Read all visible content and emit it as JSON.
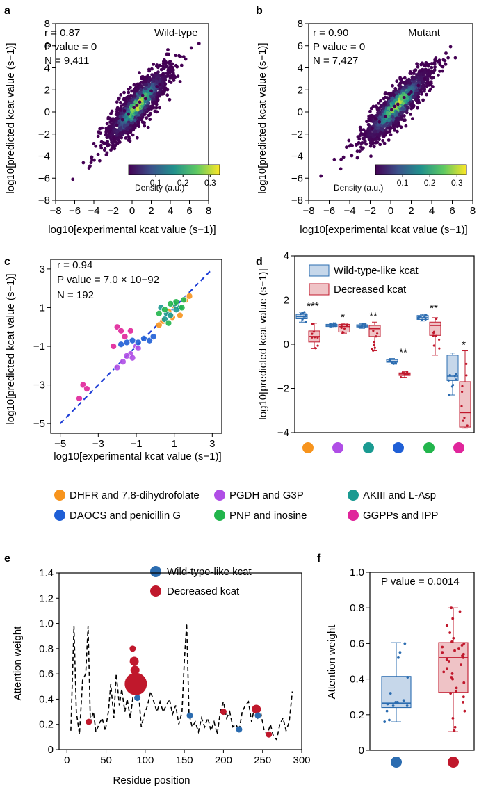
{
  "panels": {
    "a": {
      "letter": "a",
      "annotation_lines": [
        "r = 0.87",
        "P value = 0",
        "N = 9,411"
      ],
      "label": "Wild-type",
      "xlabel": "log10[experimental kcat value (s−1)]",
      "ylabel": "log10[predicted kcat value (s−1)]",
      "x_ticks": [
        "−8",
        "−6",
        "−4",
        "−2",
        "0",
        "2",
        "4",
        "6",
        "8"
      ],
      "y_ticks": [
        "−8",
        "−6",
        "−4",
        "−2",
        "0",
        "2",
        "4",
        "6",
        "8"
      ],
      "colorbar_label": "Density (a.u.)",
      "colorbar_ticks": [
        "0.1",
        "0.2",
        "0.3"
      ]
    },
    "b": {
      "letter": "b",
      "annotation_lines": [
        "r = 0.90",
        "P value = 0",
        "N = 7,427"
      ],
      "label": "Mutant",
      "xlabel": "log10[experimental kcat value (s−1)]",
      "ylabel": "log10[predicted kcat value (s−1)]",
      "x_ticks": [
        "−8",
        "−6",
        "−4",
        "−2",
        "0",
        "2",
        "4",
        "6",
        "8"
      ],
      "y_ticks": [
        "−8",
        "−6",
        "−4",
        "−2",
        "0",
        "2",
        "4",
        "6",
        "8"
      ],
      "colorbar_label": "Density (a.u.)",
      "colorbar_ticks": [
        "0.1",
        "0.2",
        "0.3"
      ]
    },
    "c": {
      "letter": "c",
      "annotation_lines": [
        "r = 0.94",
        "P value = 7.0 × 10−92",
        "N = 192"
      ],
      "xlabel": "log10[experimental kcat value (s−1)]",
      "ylabel": "log10[predicted kcat value (s−1)]",
      "x_ticks": [
        "−5",
        "−3",
        "−1",
        "1",
        "3"
      ],
      "y_ticks": [
        "−5",
        "−3",
        "−1",
        "1",
        "3"
      ]
    },
    "d": {
      "letter": "d",
      "ylabel": "log10[predicted kcat value (s−1)]",
      "y_ticks": [
        "−4",
        "−2",
        "0",
        "2",
        "4"
      ],
      "legend": [
        "Wild-type-like kcat",
        "Decreased kcat"
      ],
      "significance": [
        "***",
        "*",
        "**",
        "**",
        "**",
        "*"
      ]
    },
    "e": {
      "letter": "e",
      "xlabel": "Residue position",
      "ylabel": "Attention weight",
      "x_ticks": [
        "0",
        "50",
        "100",
        "150",
        "200",
        "250",
        "300"
      ],
      "y_ticks": [
        "0",
        "0.2",
        "0.4",
        "0.6",
        "0.8",
        "1.0",
        "1.2",
        "1.4"
      ],
      "legend": [
        "Wild-type-like kcat",
        "Decreased kcat"
      ]
    },
    "f": {
      "letter": "f",
      "annotation": "P value = 0.0014",
      "ylabel": "Attention weight",
      "y_ticks": [
        "0",
        "0.2",
        "0.4",
        "0.6",
        "0.8",
        "1.0"
      ]
    }
  },
  "substrate_legend": [
    {
      "label": "DHFR and 7,8-dihydrofolate",
      "color": "#f7941d"
    },
    {
      "label": "PGDH and G3P",
      "color": "#b04ee6"
    },
    {
      "label": "AKIII and L-Asp",
      "color": "#1a9a91"
    },
    {
      "label": "DAOCS and penicillin G",
      "color": "#1f5fd6"
    },
    {
      "label": "PNP and inosine",
      "color": "#22b54c"
    },
    {
      "label": "GGPPs and IPP",
      "color": "#e0259b"
    }
  ],
  "colors": {
    "wild_type": "#2b6cb0",
    "decreased": "#c0182c",
    "wild_type_box": "#c6d7ea",
    "decreased_box": "#efc3c6",
    "regression_line": "#1f3fd6"
  },
  "chart_data": [
    {
      "panel": "a",
      "type": "scatter",
      "title": "Wild-type",
      "xlabel": "log10[experimental kcat value (s−1)]",
      "ylabel": "log10[predicted kcat value (s−1)]",
      "xlim": [
        -8,
        8
      ],
      "ylim": [
        -8,
        8
      ],
      "stats": {
        "r": 0.87,
        "p_value": 0,
        "n": 9411
      },
      "density_colorbar": {
        "label": "Density (a.u.)",
        "ticks": [
          0.1,
          0.2,
          0.3
        ]
      },
      "points_x": [
        -6.2,
        -5.1,
        -4.4,
        -3.8,
        -3.0,
        -2.4,
        -1.6,
        -1.0,
        -0.4,
        0.2,
        0.8,
        1.4,
        2.0,
        2.6,
        3.2,
        3.9,
        4.6,
        5.4,
        6.2,
        7.0,
        -0.8,
        0.5,
        1.1,
        -1.9,
        2.9
      ],
      "points_y": [
        -6.1,
        -4.6,
        -4.9,
        -3.1,
        -2.8,
        -1.8,
        -1.2,
        -0.7,
        -0.2,
        0.4,
        0.9,
        1.2,
        1.9,
        2.3,
        3.4,
        3.6,
        4.2,
        5.0,
        5.8,
        6.2,
        0.1,
        0.6,
        1.5,
        -2.3,
        2.5
      ]
    },
    {
      "panel": "b",
      "type": "scatter",
      "title": "Mutant",
      "xlabel": "log10[experimental kcat value (s−1)]",
      "ylabel": "log10[predicted kcat value (s−1)]",
      "xlim": [
        -8,
        8
      ],
      "ylim": [
        -8,
        8
      ],
      "stats": {
        "r": 0.9,
        "p_value": 0,
        "n": 7427
      },
      "density_colorbar": {
        "label": "Density (a.u.)",
        "ticks": [
          0.1,
          0.2,
          0.3
        ]
      },
      "points_x": [
        -6.8,
        -5.5,
        -4.6,
        -3.9,
        -3.2,
        -2.5,
        -1.8,
        -1.1,
        -0.5,
        0.1,
        0.7,
        1.3,
        2.0,
        2.7,
        3.3,
        4.0,
        4.8,
        5.6,
        6.3,
        -1.5,
        0.4,
        1.8
      ],
      "points_y": [
        -5.8,
        -4.3,
        -4.1,
        -3.0,
        -2.9,
        -2.0,
        -1.5,
        -0.9,
        -0.4,
        0.2,
        0.7,
        1.3,
        1.8,
        2.4,
        3.0,
        3.7,
        4.3,
        4.9,
        4.9,
        -0.6,
        0.5,
        1.6
      ]
    },
    {
      "panel": "c",
      "type": "scatter",
      "xlabel": "log10[experimental kcat value (s−1)]",
      "ylabel": "log10[predicted kcat value (s−1)]",
      "xlim": [
        -5.5,
        3.5
      ],
      "ylim": [
        -5.5,
        3.5
      ],
      "stats": {
        "r": 0.94,
        "p_value": "7.0 × 10−92",
        "n": 192
      },
      "series": [
        {
          "group": "DHFR and 7,8-dihydrofolate",
          "color": "#f7941d",
          "x": [
            0.4,
            0.7,
            1.0,
            1.3,
            1.6,
            0.2,
            0.9,
            1.8
          ],
          "y": [
            0.3,
            0.8,
            1.1,
            0.6,
            1.4,
            0.1,
            0.5,
            1.6
          ]
        },
        {
          "group": "PGDH and G3P",
          "color": "#b04ee6",
          "x": [
            -1.7,
            -1.3,
            -1.0,
            -1.5,
            -2.0,
            -0.9,
            -1.2
          ],
          "y": [
            -1.8,
            -1.4,
            -1.0,
            -1.5,
            -2.1,
            -1.1,
            -1.6
          ]
        },
        {
          "group": "AKIII and L-Asp",
          "color": "#1a9a91",
          "x": [
            0.3,
            0.6,
            1.0,
            1.3,
            0.8,
            0.5,
            1.1
          ],
          "y": [
            1.0,
            0.7,
            1.2,
            1.0,
            0.6,
            0.4,
            0.9
          ]
        },
        {
          "group": "DAOCS and penicillin G",
          "color": "#1f5fd6",
          "x": [
            -1.5,
            -1.2,
            -0.9,
            -0.6,
            -0.3,
            -0.1,
            -1.8
          ],
          "y": [
            -0.8,
            -0.7,
            -0.8,
            -0.6,
            -0.7,
            -0.5,
            -0.9
          ]
        },
        {
          "group": "PNP and inosine",
          "color": "#22b54c",
          "x": [
            0.5,
            0.8,
            1.1,
            1.4,
            0.2,
            1.5,
            0.7
          ],
          "y": [
            0.9,
            1.2,
            1.3,
            1.0,
            0.7,
            1.4,
            0.2
          ]
        },
        {
          "group": "GGPPs and IPP",
          "color": "#e0259b",
          "x": [
            -3.8,
            -3.6,
            -4.0,
            -2.0,
            -1.8,
            -1.6,
            -2.2,
            -1.3
          ],
          "y": [
            -3.0,
            -3.2,
            -3.7,
            0.0,
            -0.2,
            -0.5,
            -1.0,
            -0.2
          ]
        }
      ],
      "regression_line": {
        "x": [
          -5,
          3
        ],
        "y": [
          -5,
          3
        ]
      }
    },
    {
      "panel": "d",
      "type": "box",
      "ylabel": "log10[predicted kcat value (s−1)]",
      "ylim": [
        -4,
        4
      ],
      "groups": [
        "DHFR and 7,8-dihydrofolate",
        "PGDH and G3P",
        "AKIII and L-Asp",
        "DAOCS and penicillin G",
        "PNP and inosine",
        "GGPPs and IPP"
      ],
      "series": [
        {
          "name": "Wild-type-like kcat",
          "q1": [
            1.15,
            0.8,
            0.78,
            -0.82,
            1.12,
            -1.65
          ],
          "median": [
            1.25,
            0.85,
            0.82,
            -0.78,
            1.2,
            -1.45
          ],
          "q3": [
            1.35,
            0.9,
            0.88,
            -0.7,
            1.3,
            -0.5
          ],
          "whisker_low": [
            1.0,
            0.75,
            0.72,
            -0.9,
            1.05,
            -2.3
          ],
          "whisker_high": [
            1.45,
            0.95,
            0.92,
            -0.65,
            1.35,
            -0.4
          ]
        },
        {
          "name": "Decreased kcat",
          "q1": [
            0.1,
            0.55,
            0.35,
            -1.42,
            0.4,
            -3.75
          ],
          "median": [
            0.35,
            0.8,
            0.7,
            -1.35,
            0.85,
            -3.1
          ],
          "q3": [
            0.6,
            0.9,
            0.85,
            -1.3,
            1.0,
            -1.7
          ],
          "whisker_low": [
            -0.2,
            0.5,
            -0.3,
            -1.5,
            -0.5,
            -3.8
          ],
          "whisker_high": [
            0.95,
            0.95,
            1.0,
            -1.25,
            1.2,
            -0.3
          ]
        }
      ],
      "significance": [
        "***",
        "*",
        "**",
        "**",
        "**",
        "*"
      ]
    },
    {
      "panel": "e",
      "type": "line",
      "xlabel": "Residue position",
      "ylabel": "Attention weight",
      "xlim": [
        -10,
        300
      ],
      "ylim": [
        0,
        1.4
      ],
      "line": {
        "x": [
          5,
          9,
          12,
          16,
          20,
          24,
          27,
          30,
          34,
          37,
          41,
          45,
          49,
          53,
          56,
          60,
          63,
          67,
          70,
          74,
          77,
          81,
          85,
          88,
          92,
          95,
          99,
          103,
          107,
          111,
          115,
          119,
          123,
          127,
          131,
          135,
          139,
          143,
          147,
          150,
          153,
          156,
          160,
          164,
          168,
          172,
          176,
          180,
          184,
          188,
          192,
          196,
          200,
          204,
          208,
          212,
          216,
          220,
          224,
          228,
          232,
          236,
          240,
          244,
          248,
          252,
          256,
          260,
          264,
          268,
          272,
          276,
          280,
          284,
          288
        ],
        "y": [
          0.15,
          0.98,
          0.3,
          0.12,
          0.55,
          0.6,
          0.98,
          0.22,
          0.3,
          0.14,
          0.2,
          0.25,
          0.15,
          0.3,
          0.52,
          0.25,
          0.6,
          0.35,
          0.48,
          0.3,
          0.4,
          0.25,
          0.45,
          0.65,
          0.42,
          0.18,
          0.28,
          0.35,
          0.46,
          0.38,
          0.3,
          0.38,
          0.3,
          0.35,
          0.4,
          0.28,
          0.35,
          0.2,
          0.3,
          0.7,
          1.0,
          0.28,
          0.18,
          0.22,
          0.14,
          0.25,
          0.18,
          0.25,
          0.15,
          0.22,
          0.12,
          0.3,
          0.38,
          0.25,
          0.3,
          0.18,
          0.2,
          0.15,
          0.3,
          0.35,
          0.38,
          0.22,
          0.35,
          0.25,
          0.28,
          0.15,
          0.12,
          0.2,
          0.1,
          0.08,
          0.2,
          0.25,
          0.15,
          0.22,
          0.46
        ]
      },
      "points": [
        {
          "series": "Decreased kcat",
          "x": 28,
          "y": 0.22,
          "size": "small"
        },
        {
          "series": "Decreased kcat",
          "x": 84,
          "y": 0.8,
          "size": "small"
        },
        {
          "series": "Decreased kcat",
          "x": 86,
          "y": 0.7,
          "size": "medium"
        },
        {
          "series": "Decreased kcat",
          "x": 87,
          "y": 0.63,
          "size": "medium"
        },
        {
          "series": "Decreased kcat",
          "x": 88,
          "y": 0.52,
          "size": "large"
        },
        {
          "series": "Wild-type-like kcat",
          "x": 90,
          "y": 0.41,
          "size": "small"
        },
        {
          "series": "Wild-type-like kcat",
          "x": 157,
          "y": 0.27,
          "size": "small"
        },
        {
          "series": "Decreased kcat",
          "x": 200,
          "y": 0.3,
          "size": "small"
        },
        {
          "series": "Wild-type-like kcat",
          "x": 220,
          "y": 0.16,
          "size": "small"
        },
        {
          "series": "Decreased kcat",
          "x": 242,
          "y": 0.32,
          "size": "medium"
        },
        {
          "series": "Wild-type-like kcat",
          "x": 244,
          "y": 0.27,
          "size": "small"
        },
        {
          "series": "Decreased kcat",
          "x": 258,
          "y": 0.12,
          "size": "small"
        }
      ]
    },
    {
      "panel": "f",
      "type": "box",
      "ylabel": "Attention weight",
      "ylim": [
        0,
        1.0
      ],
      "p_value": 0.0014,
      "series": [
        {
          "name": "Wild-type-like kcat",
          "q1": 0.24,
          "median": 0.265,
          "q3": 0.415,
          "whisker_low": 0.16,
          "whisker_high": 0.605,
          "points": [
            0.16,
            0.17,
            0.22,
            0.25,
            0.25,
            0.26,
            0.27,
            0.27,
            0.28,
            0.32,
            0.41,
            0.52,
            0.55,
            0.6
          ]
        },
        {
          "name": "Decreased kcat",
          "q1": 0.325,
          "median": 0.52,
          "q3": 0.605,
          "whisker_low": 0.105,
          "whisker_high": 0.8,
          "points": [
            0.11,
            0.13,
            0.18,
            0.22,
            0.27,
            0.3,
            0.32,
            0.33,
            0.35,
            0.38,
            0.4,
            0.41,
            0.43,
            0.44,
            0.46,
            0.48,
            0.5,
            0.51,
            0.52,
            0.53,
            0.54,
            0.55,
            0.56,
            0.57,
            0.58,
            0.59,
            0.6,
            0.61,
            0.63,
            0.66,
            0.7,
            0.74,
            0.78,
            0.8
          ]
        }
      ]
    }
  ]
}
